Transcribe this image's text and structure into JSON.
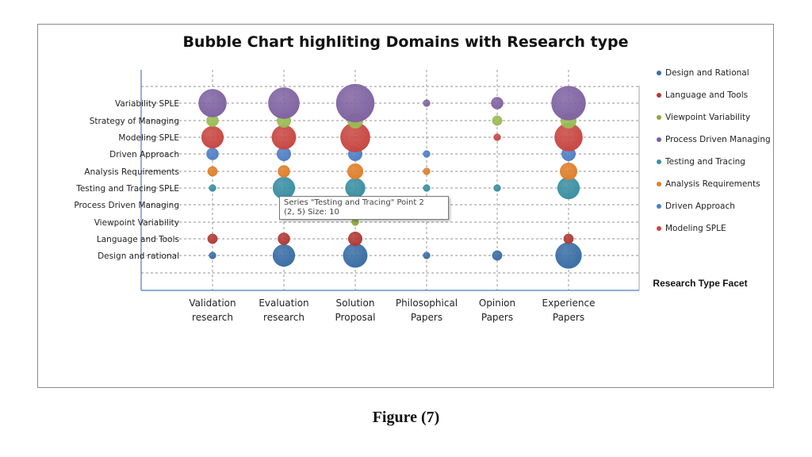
{
  "chart_data": {
    "type": "scatter",
    "subtype": "bubble",
    "title": "Bubble Chart highliting Domains with Research type",
    "xlabel": "Research Type Facet",
    "ylabel": "",
    "categories_x": [
      "Validation research",
      "Evaluation research",
      "Solution Proposal",
      "Philosophical Papers",
      "Opinion Papers",
      "Experience Papers"
    ],
    "categories_y": [
      "Design and rational",
      "Language and Tools",
      "Viewpoint Variability",
      "Process Driven Managing",
      "Testing and Tracing SPLE",
      "Analysis Requirements",
      "Driven Approach",
      "Modeling SPLE",
      "Strategy of Managing",
      "Variability SPLE"
    ],
    "legend_position": "right",
    "grid": true,
    "series": [
      {
        "name": "Design and Rational",
        "color": "#3a6ea5",
        "y": 1,
        "values": [
          1,
          10,
          12,
          1,
          2,
          14
        ]
      },
      {
        "name": "Language and Tools",
        "color": "#b03a36",
        "y": 2,
        "values": [
          2,
          3,
          4,
          0,
          0,
          2
        ]
      },
      {
        "name": "Viewpoint Variability",
        "color": "#8aaa3c",
        "y": 3,
        "values": [
          0,
          0,
          1,
          0,
          0,
          0
        ]
      },
      {
        "name": "Process Driven Managing",
        "color": "#7a5e9e",
        "y": 4,
        "values": [
          0,
          0,
          0,
          0,
          0,
          0
        ]
      },
      {
        "name": "Testing and Tracing",
        "color": "#3a8fa3",
        "y": 5,
        "values": [
          1,
          10,
          8,
          1,
          1,
          10
        ]
      },
      {
        "name": "Analysis Requirements",
        "color": "#e07f2a",
        "y": 6,
        "values": [
          2,
          3,
          5,
          1,
          0,
          6
        ]
      },
      {
        "name": "Driven Approach",
        "color": "#4f7fc4",
        "y": 7,
        "values": [
          3,
          4,
          4,
          1,
          0,
          4
        ]
      },
      {
        "name": "Modeling SPLE",
        "color": "#c84742",
        "y": 8,
        "values": [
          10,
          12,
          18,
          0,
          1,
          16
        ]
      },
      {
        "name": "Strategy of Managing",
        "color": "#9bbb52",
        "y": 9,
        "values": [
          3,
          4,
          5,
          0,
          2,
          5
        ]
      },
      {
        "name": "Variability SPLE",
        "color": "#8064a2",
        "y": 10,
        "values": [
          16,
          20,
          30,
          1,
          3,
          24
        ]
      }
    ]
  },
  "legend": {
    "items": [
      {
        "label": "Design and Rational",
        "color": "#3a6ea5"
      },
      {
        "label": "Language and Tools",
        "color": "#b03a36"
      },
      {
        "label": "Viewpoint Variability",
        "color": "#8aaa3c"
      },
      {
        "label": "Process Driven Managing",
        "color": "#7a5e9e"
      },
      {
        "label": "Testing and Tracing",
        "color": "#3a8fa3"
      },
      {
        "label": "Analysis Requirements",
        "color": "#e07f2a"
      },
      {
        "label": "Driven Approach",
        "color": "#4f7fc4"
      },
      {
        "label": "Modeling SPLE",
        "color": "#c84742"
      }
    ],
    "title": "Research Type Facet"
  },
  "tooltip": {
    "line1": "Series \"Testing and Tracing\" Point 2",
    "line2": "(2, 5) Size: 10"
  },
  "caption": "Figure (7)"
}
